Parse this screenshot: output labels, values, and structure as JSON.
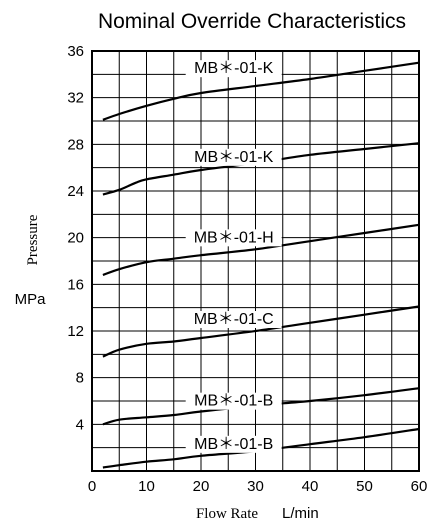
{
  "chart_data": {
    "type": "line",
    "title": "Nominal Override Characteristics",
    "xlabel": "Flow Rate",
    "xunit": "L/min",
    "ylabel": "Pressure",
    "yunit": "MPa",
    "xlim": [
      0,
      60
    ],
    "ylim": [
      0,
      36
    ],
    "x_ticks": [
      0,
      10,
      20,
      30,
      40,
      50,
      60
    ],
    "y_ticks": [
      4,
      8,
      12,
      16,
      20,
      24,
      28,
      32,
      36
    ],
    "x_grid": [
      0,
      5,
      10,
      15,
      20,
      25,
      30,
      35,
      40,
      45,
      50,
      55,
      60
    ],
    "y_grid": [
      2,
      4,
      6,
      8,
      10,
      12,
      14,
      16,
      18,
      20,
      22,
      24,
      26,
      28,
      30,
      32,
      34,
      36
    ],
    "grid": true,
    "series": [
      {
        "name": "MB＊-01-K",
        "label_at": [
          26,
          34.1
        ],
        "points": [
          [
            2,
            30.1
          ],
          [
            5,
            30.6
          ],
          [
            10,
            31.3
          ],
          [
            15,
            31.9
          ],
          [
            20,
            32.4
          ],
          [
            30,
            33.0
          ],
          [
            40,
            33.6
          ],
          [
            50,
            34.3
          ],
          [
            60,
            35.0
          ]
        ]
      },
      {
        "name": "MB＊-01-K",
        "label_at": [
          26,
          26.5
        ],
        "points": [
          [
            2,
            23.7
          ],
          [
            5,
            24.1
          ],
          [
            8,
            24.7
          ],
          [
            10,
            25.0
          ],
          [
            15,
            25.4
          ],
          [
            20,
            25.8
          ],
          [
            30,
            26.4
          ],
          [
            40,
            27.1
          ],
          [
            50,
            27.6
          ],
          [
            60,
            28.1
          ]
        ]
      },
      {
        "name": "MB＊-01-H",
        "label_at": [
          26,
          19.6
        ],
        "points": [
          [
            2,
            16.8
          ],
          [
            5,
            17.3
          ],
          [
            10,
            17.9
          ],
          [
            15,
            18.2
          ],
          [
            20,
            18.5
          ],
          [
            30,
            19.0
          ],
          [
            40,
            19.7
          ],
          [
            50,
            20.4
          ],
          [
            60,
            21.1
          ]
        ]
      },
      {
        "name": "MB＊-01-C",
        "label_at": [
          26,
          12.6
        ],
        "points": [
          [
            2,
            9.8
          ],
          [
            5,
            10.4
          ],
          [
            10,
            10.9
          ],
          [
            15,
            11.1
          ],
          [
            20,
            11.4
          ],
          [
            30,
            12.0
          ],
          [
            40,
            12.7
          ],
          [
            50,
            13.4
          ],
          [
            60,
            14.1
          ]
        ]
      },
      {
        "name": "MB＊-01-B",
        "label_at": [
          26,
          5.6
        ],
        "points": [
          [
            2,
            4.0
          ],
          [
            5,
            4.4
          ],
          [
            10,
            4.6
          ],
          [
            15,
            4.8
          ],
          [
            20,
            5.1
          ],
          [
            30,
            5.6
          ],
          [
            40,
            6.0
          ],
          [
            50,
            6.5
          ],
          [
            60,
            7.1
          ]
        ]
      },
      {
        "name": "MB＊-01-B",
        "label_at": [
          26,
          1.9
        ],
        "points": [
          [
            2,
            0.3
          ],
          [
            5,
            0.5
          ],
          [
            10,
            0.8
          ],
          [
            15,
            1.0
          ],
          [
            20,
            1.3
          ],
          [
            30,
            1.7
          ],
          [
            40,
            2.3
          ],
          [
            50,
            2.9
          ],
          [
            60,
            3.6
          ]
        ]
      }
    ]
  }
}
